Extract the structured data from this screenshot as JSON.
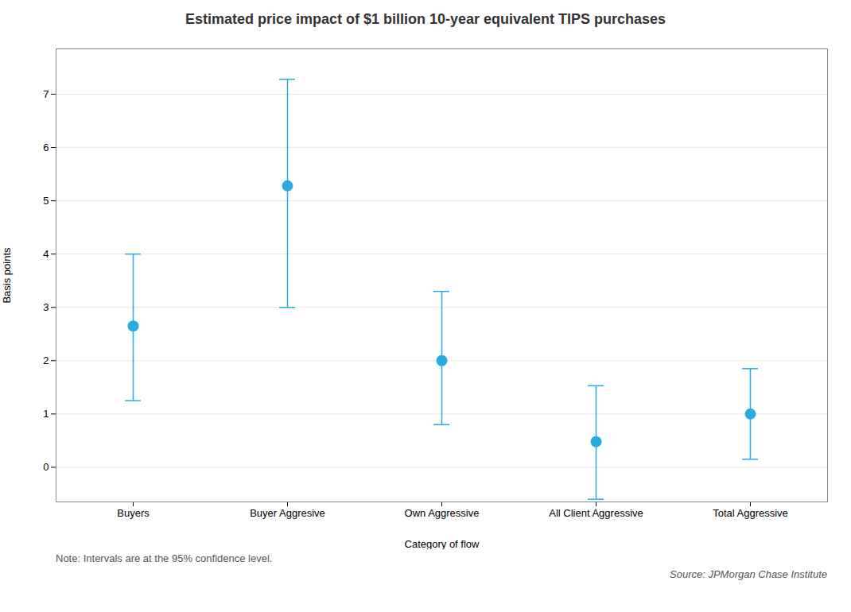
{
  "chart_data": {
    "type": "errorbar",
    "title": "Estimated price impact of $1 billion 10-year equivalent TIPS purchases",
    "xlabel": "Category of flow",
    "ylabel": "Basis points",
    "categories": [
      "Buyers",
      "Buyer Aggresive",
      "Own Aggressive",
      "All Client Aggressive",
      "Total Aggressive"
    ],
    "values": [
      2.65,
      5.28,
      2.0,
      0.48,
      1.0
    ],
    "lower_errors": [
      1.4,
      2.28,
      1.2,
      1.08,
      0.85
    ],
    "upper_errors": [
      1.35,
      2.0,
      1.3,
      1.05,
      0.85
    ],
    "ylim": [
      -0.65,
      7.85
    ],
    "yticks": [
      0,
      1,
      2,
      3,
      4,
      5,
      6,
      7
    ],
    "color": "#29ABE2",
    "grid": true,
    "note": "Note: Intervals are at the 95% confidence level.",
    "source": "Source: JPMorgan Chase Institute"
  }
}
